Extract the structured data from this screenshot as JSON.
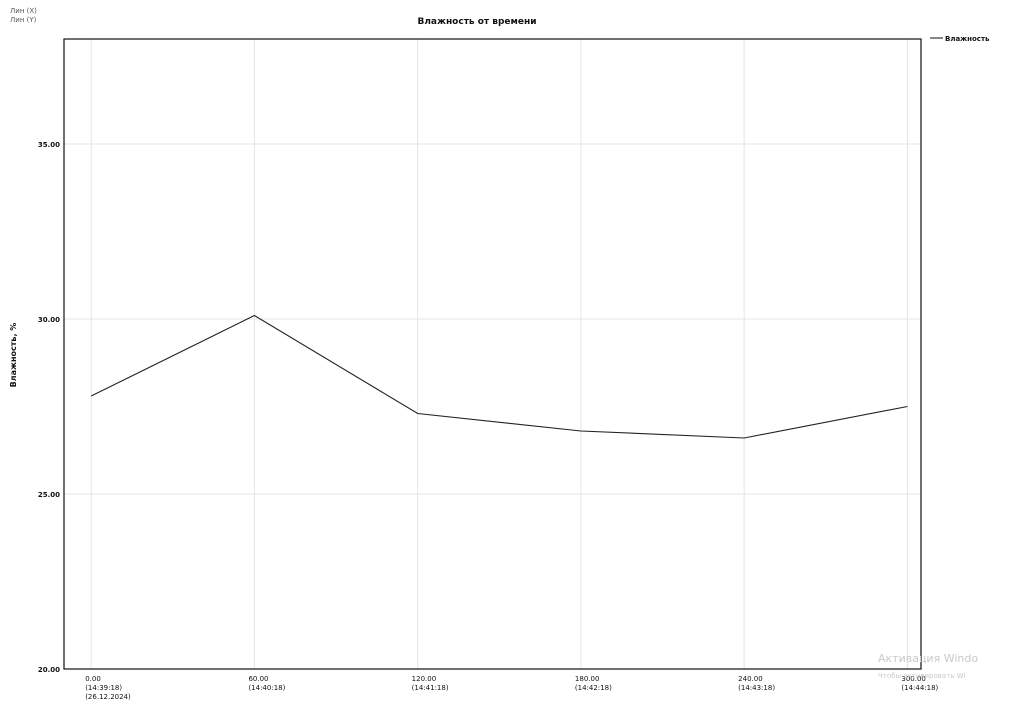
{
  "corner_notes": [
    "Лин (X)",
    "Лин (Y)"
  ],
  "watermark": [
    "Активация Windo",
    "Чтобы активировать Wi"
  ],
  "chart_data": {
    "type": "line",
    "title": "Влажность от времени",
    "xlabel": "",
    "ylabel": "Влажность, %",
    "xlim": [
      -10,
      305
    ],
    "ylim": [
      20,
      38
    ],
    "grid": true,
    "legend": "top-right",
    "x_ticks": [
      {
        "value": 0,
        "lines": [
          "0.00",
          "(14:39:18)",
          "(26.12.2024)"
        ]
      },
      {
        "value": 60,
        "lines": [
          "60.00",
          "(14:40:18)"
        ]
      },
      {
        "value": 120,
        "lines": [
          "120.00",
          "(14:41:18)"
        ]
      },
      {
        "value": 180,
        "lines": [
          "180.00",
          "(14:42:18)"
        ]
      },
      {
        "value": 240,
        "lines": [
          "240.00",
          "(14:43:18)"
        ]
      },
      {
        "value": 300,
        "lines": [
          "300.00",
          "(14:44:18)"
        ]
      }
    ],
    "y_ticks": [
      {
        "value": 20,
        "label": "20.00"
      },
      {
        "value": 25,
        "label": "25.00"
      },
      {
        "value": 30,
        "label": "30.00"
      },
      {
        "value": 35,
        "label": "35.00"
      }
    ],
    "series": [
      {
        "name": "Влажность",
        "color": "#222222",
        "x": [
          0,
          60,
          120,
          180,
          240,
          300
        ],
        "y": [
          27.8,
          30.1,
          27.3,
          26.8,
          26.6,
          27.5
        ]
      }
    ]
  }
}
